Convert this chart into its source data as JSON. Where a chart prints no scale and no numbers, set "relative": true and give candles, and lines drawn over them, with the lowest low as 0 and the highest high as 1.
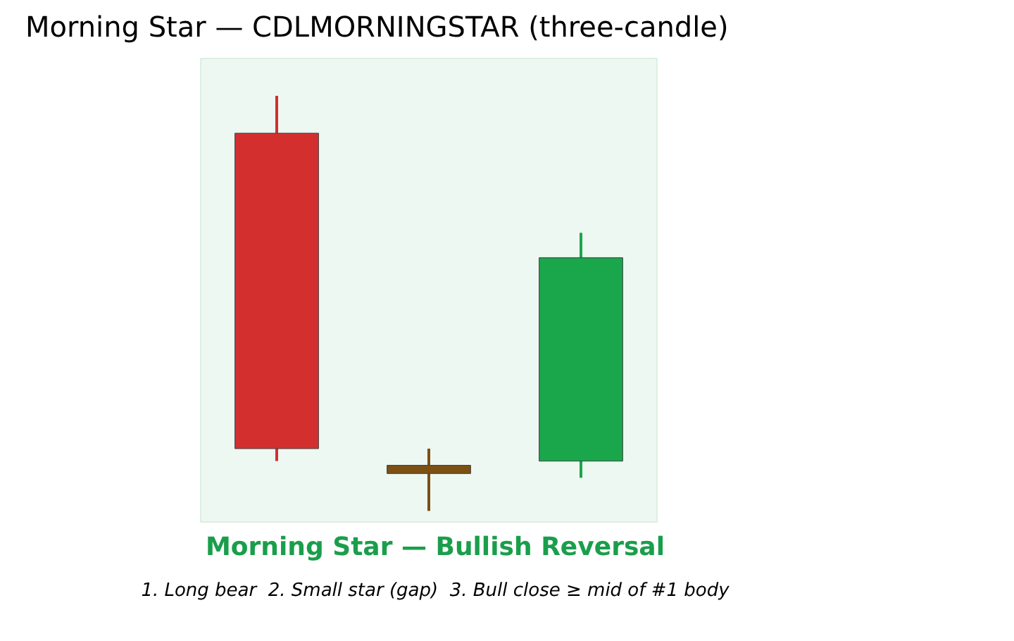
{
  "chart_data": {
    "type": "candlestick",
    "title": "Morning Star — CDLMORNINGSTAR (three-candle)",
    "categories": [
      null,
      null,
      null
    ],
    "relative": true,
    "ohlc": [
      [
        0.91,
        1,
        0.12,
        0.15
      ],
      [
        0.11,
        0.15,
        0,
        0.09
      ],
      [
        0.12,
        0.67,
        0.08,
        0.61
      ]
    ],
    "colors": [
      "#d32f2f",
      "#7b5012",
      "#1aa64b"
    ],
    "annotations": [
      "Morning Star — Bullish Reversal",
      "1. Long bear  2. Small star (gap)  3. Bull close ≥ mid of #1 body"
    ]
  }
}
